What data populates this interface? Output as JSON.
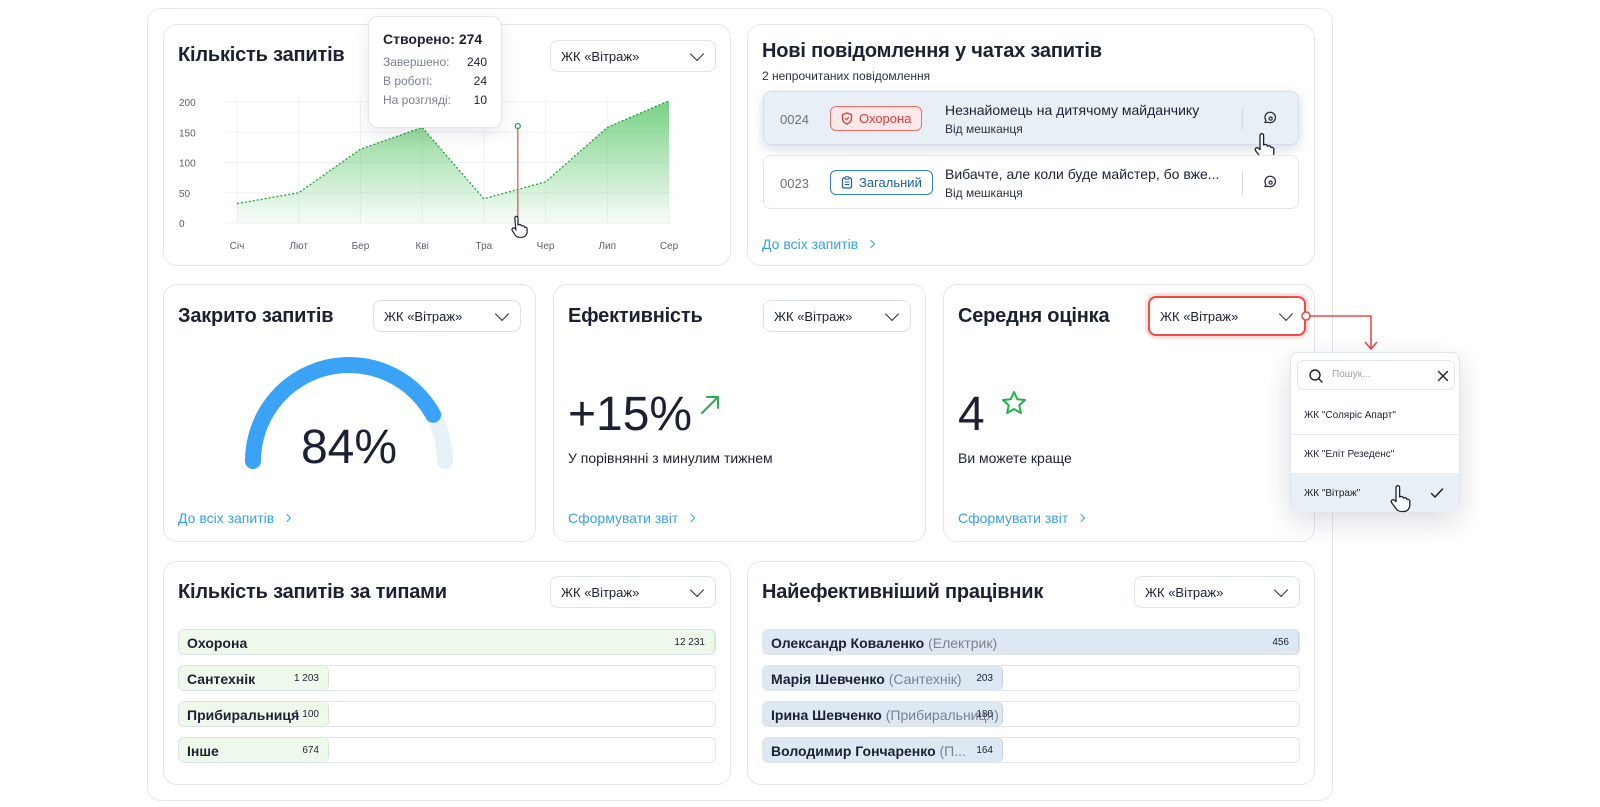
{
  "select_value": "ЖК «Вітраж»",
  "requests_chart": {
    "title": "Кількість запитів",
    "tooltip": {
      "title": "Створено: 274",
      "rows": [
        {
          "label": "Завершено:",
          "value": "240"
        },
        {
          "label": "В роботі:",
          "value": "24"
        },
        {
          "label": "На розгляді:",
          "value": "10"
        }
      ]
    }
  },
  "chart_data": {
    "type": "area",
    "categories": [
      "Січ",
      "Лют",
      "Бер",
      "Кві",
      "Тра",
      "Чер",
      "Лип",
      "Сер"
    ],
    "y_ticks": [
      "200",
      "150",
      "100",
      "50",
      "0"
    ],
    "ylim": [
      0,
      200
    ],
    "series": [
      {
        "values": [
          32,
          50,
          122,
          158,
          40,
          68,
          158,
          202
        ]
      }
    ],
    "grid": true,
    "highlight_x": 4.55,
    "color": "#4cc25b"
  },
  "messages": {
    "title": "Нові повідомлення у чатах запитів",
    "subtitle": "2 непрочитаних повідомлення",
    "items": [
      {
        "num": "0024",
        "badge": "Охорона",
        "text": "Незнайомець на дитячому майданчику",
        "from": "Від мешканця"
      },
      {
        "num": "0023",
        "badge": "Загальний",
        "text": "Вибачте, але коли буде майстер, бо вже...",
        "from": "Від мешканця"
      }
    ],
    "link": "До всіх запитів"
  },
  "closed": {
    "title": "Закрито запитів",
    "value": "84%",
    "percent": 84,
    "link": "До всіх запитів"
  },
  "efficiency": {
    "title": "Ефективність",
    "value": "+15%",
    "caption": "У порівнянні з минулим тижнем",
    "link": "Сформувати звіт"
  },
  "rating": {
    "title": "Середня оцінка",
    "value": "4",
    "caption": "Ви можете краще",
    "link": "Сформувати звіт",
    "dropdown": {
      "placeholder": "Пошук...",
      "options": [
        "ЖК \"Соляріс Апарт\"",
        "ЖК \"Еліт Резеденс\"",
        "ЖК \"Вітраж\""
      ]
    }
  },
  "types": {
    "title": "Кількість запитів за типами",
    "max": 12231,
    "rows": [
      {
        "label": "Охорона",
        "value": 12231,
        "display": "12 231"
      },
      {
        "label": "Сантехнік",
        "value": 1203,
        "display": "1 203"
      },
      {
        "label": "Прибиральниця",
        "value": 1100,
        "display": "1 100"
      },
      {
        "label": "Інше",
        "value": 674,
        "display": "674"
      }
    ]
  },
  "workers": {
    "title": "Найефективніший працівник",
    "max": 456,
    "rows": [
      {
        "name": "Олександр Коваленко",
        "role": "(Електрик)",
        "value": 456,
        "display": "456"
      },
      {
        "name": "Марія Шевченко",
        "role": "(Сантехнік)",
        "value": 203,
        "display": "203"
      },
      {
        "name": "Ірина Шевченко",
        "role": "(Прибиральниця)",
        "value": 180,
        "display": "180"
      },
      {
        "name": "Володимир Гончаренко",
        "role": "(П...",
        "value": 164,
        "display": "164"
      }
    ]
  }
}
